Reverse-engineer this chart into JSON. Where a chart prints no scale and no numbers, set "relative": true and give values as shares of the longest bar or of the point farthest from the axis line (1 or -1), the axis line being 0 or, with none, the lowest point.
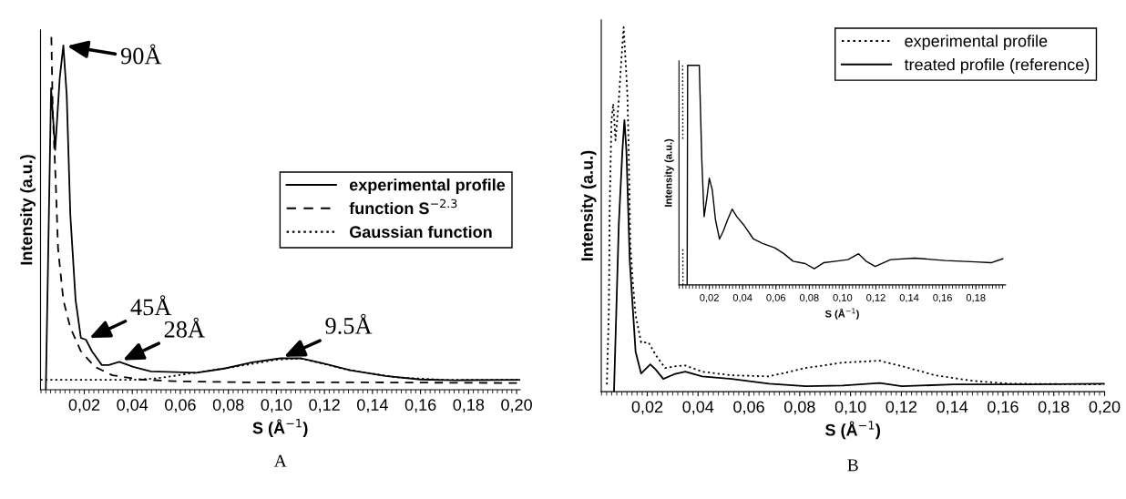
{
  "chart_data": [
    {
      "type": "line",
      "xlabel": "S (Å$^{−1}$)",
      "ylabel": "Intensity (a.u.)",
      "relative": true,
      "tick_labels": "x",
      "legend": "right",
      "grid": false,
      "xlim": [
        0.0018,
        0.2015
      ],
      "xticks": [
        {
          "value": 0.02,
          "label": "0,02"
        },
        {
          "value": 0.04,
          "label": "0,04"
        },
        {
          "value": 0.06,
          "label": "0,06"
        },
        {
          "value": 0.08,
          "label": "0,08"
        },
        {
          "value": 0.1,
          "label": "0,10"
        },
        {
          "value": 0.12,
          "label": "0,12"
        },
        {
          "value": 0.14,
          "label": "0,14"
        },
        {
          "value": 0.16,
          "label": "0,16"
        },
        {
          "value": 0.18,
          "label": "0,18"
        },
        {
          "value": 0.2,
          "label": "0,20"
        }
      ],
      "series": [
        {
          "name": "experimental profile",
          "color": "#000000",
          "line_style": "solid",
          "x": [
            0.004,
            0.0062,
            0.0079,
            0.0098,
            0.0113,
            0.0127,
            0.0142,
            0.0164,
            0.0186,
            0.0207,
            0.0232,
            0.0273,
            0.0302,
            0.0346,
            0.0404,
            0.0477,
            0.0579,
            0.0667,
            0.0783,
            0.09,
            0.1017,
            0.1104,
            0.1192,
            0.1308,
            0.1454,
            0.16,
            0.1746,
            0.2015
          ],
          "values": [
            0,
            0.855,
            0.68,
            0.884,
            0.976,
            0.835,
            0.496,
            0.254,
            0.147,
            0.142,
            0.109,
            0.07,
            0.07,
            0.079,
            0.065,
            0.052,
            0.05,
            0.048,
            0.06,
            0.078,
            0.089,
            0.089,
            0.075,
            0.055,
            0.039,
            0.029,
            0.027,
            0.028
          ]
        },
        {
          "name": "function S$^{−2.3}$",
          "color": "#000000",
          "line_style": "dashed",
          "x": [
            0.0063,
            0.0069,
            0.0081,
            0.0091,
            0.0113,
            0.0142,
            0.0186,
            0.0244,
            0.0317,
            0.0433,
            0.0579,
            0.087,
            0.1308,
            0.2015
          ],
          "values": [
            1.0,
            0.787,
            0.593,
            0.399,
            0.254,
            0.176,
            0.109,
            0.065,
            0.041,
            0.029,
            0.024,
            0.021,
            0.021,
            0.019
          ]
        },
        {
          "name": "Gaussian function",
          "color": "#000000",
          "line_style": "dotted",
          "x": [
            0.0018,
            0.04,
            0.05,
            0.06,
            0.066,
            0.08,
            0.1,
            0.11,
            0.13,
            0.15,
            0.17,
            0.2015
          ],
          "values": [
            0.028,
            0.028,
            0.032,
            0.042,
            0.048,
            0.062,
            0.085,
            0.089,
            0.056,
            0.035,
            0.028,
            0.028
          ]
        }
      ],
      "annotations": [
        {
          "text": "90Å",
          "x": 0.0113,
          "y": 0.976
        },
        {
          "text": "45Å",
          "x": 0.0207,
          "y": 0.142
        },
        {
          "text": "28Å",
          "x": 0.0346,
          "y": 0.079
        },
        {
          "text": "9.5Å",
          "x": 0.1017,
          "y": 0.089
        },
        "A"
      ]
    },
    {
      "type": "line",
      "xlabel": "S (Å$^{−1}$)",
      "ylabel": "Intensity (a.u.)",
      "relative": true,
      "tick_labels": "x",
      "legend": "top right",
      "grid": false,
      "xlim": [
        0.0019,
        0.2
      ],
      "xticks": [
        {
          "value": 0.02,
          "label": "0,02"
        },
        {
          "value": 0.04,
          "label": "0,04"
        },
        {
          "value": 0.06,
          "label": "0,06"
        },
        {
          "value": 0.08,
          "label": "0,08"
        },
        {
          "value": 0.1,
          "label": "0,10"
        },
        {
          "value": 0.12,
          "label": "0,12"
        },
        {
          "value": 0.14,
          "label": "0,14"
        },
        {
          "value": 0.16,
          "label": "0,16"
        },
        {
          "value": 0.18,
          "label": "0,18"
        },
        {
          "value": 0.2,
          "label": "0,20"
        }
      ],
      "series": [
        {
          "name": "experimental profile",
          "color": "#000000",
          "line_style": "dotted",
          "x": [
            0.0041,
            0.0049,
            0.0052,
            0.0059,
            0.0066,
            0.0075,
            0.0088,
            0.0098,
            0.0107,
            0.0116,
            0.0122,
            0.0127,
            0.0133,
            0.0142,
            0.0154,
            0.0176,
            0.0205,
            0.0234,
            0.027,
            0.0314,
            0.035,
            0.0416,
            0.0532,
            0.0679,
            0.0824,
            0.097,
            0.1115,
            0.1202,
            0.1334,
            0.1479,
            0.1625,
            0.2
          ],
          "values": [
            0.02,
            0.23,
            0.5,
            0.74,
            0.79,
            0.69,
            0.8,
            0.91,
            1.0,
            0.89,
            0.81,
            0.66,
            0.41,
            0.31,
            0.21,
            0.135,
            0.135,
            0.1,
            0.065,
            0.07,
            0.072,
            0.055,
            0.045,
            0.042,
            0.065,
            0.08,
            0.085,
            0.07,
            0.045,
            0.03,
            0.022,
            0.02
          ]
        },
        {
          "name": "treated profile (reference)",
          "color": "#000000",
          "line_style": "solid",
          "x": [
            0.0069,
            0.0088,
            0.0102,
            0.011,
            0.0118,
            0.0131,
            0.0154,
            0.0176,
            0.0212,
            0.0234,
            0.0263,
            0.0306,
            0.035,
            0.0416,
            0.0532,
            0.0679,
            0.0824,
            0.097,
            0.1115,
            0.1202,
            0.1406,
            0.1697,
            0.2
          ],
          "values": [
            0,
            0.46,
            0.66,
            0.745,
            0.66,
            0.36,
            0.11,
            0.05,
            0.075,
            0.06,
            0.035,
            0.048,
            0.055,
            0.042,
            0.035,
            0.022,
            0.015,
            0.017,
            0.024,
            0.015,
            0.02,
            0.02,
            0.022
          ]
        }
      ],
      "annotations": [
        "B"
      ]
    },
    {
      "type": "line",
      "xlabel": "S (Å$^{−1}$)",
      "ylabel": "Intensity (a.u.)",
      "relative": true,
      "tick_labels": "x",
      "grid": false,
      "xlim": [
        0.0018,
        0.1978
      ],
      "xticks": [
        {
          "value": 0.02,
          "label": "0,02"
        },
        {
          "value": 0.04,
          "label": "0,04"
        },
        {
          "value": 0.06,
          "label": "0,06"
        },
        {
          "value": 0.08,
          "label": "0,08"
        },
        {
          "value": 0.1,
          "label": "0,10"
        },
        {
          "value": 0.12,
          "label": "0,12"
        },
        {
          "value": 0.14,
          "label": "0,14"
        },
        {
          "value": 0.16,
          "label": "0,16"
        },
        {
          "value": 0.18,
          "label": "0,18"
        }
      ],
      "series": [
        {
          "color": "#000000",
          "line_style": "dotted",
          "x": [
            0.004,
            0.0041
          ],
          "values": [
            1.0,
            0.662
          ]
        },
        {
          "color": "#000000",
          "line_style": "dotted",
          "x": [
            0.0041,
            0.0042
          ],
          "values": [
            0.162,
            0.0
          ]
        },
        {
          "color": "#000000",
          "line_style": "solid",
          "x": [
            0.0067,
            0.007,
            0.014,
            0.0155,
            0.0169,
            0.0187,
            0.02,
            0.0218,
            0.0237,
            0.0261,
            0.0283,
            0.031,
            0.0337,
            0.0365,
            0.041,
            0.0465,
            0.052,
            0.0593,
            0.0648,
            0.0703,
            0.0776,
            0.083,
            0.0886,
            0.0959,
            0.1032,
            0.1096,
            0.1141,
            0.1196,
            0.1288,
            0.1434,
            0.1617,
            0.18,
            0.1891,
            0.1961
          ],
          "values": [
            0,
            1.0,
            1.0,
            0.568,
            0.311,
            0.405,
            0.486,
            0.432,
            0.297,
            0.209,
            0.243,
            0.297,
            0.345,
            0.311,
            0.27,
            0.209,
            0.189,
            0.169,
            0.142,
            0.108,
            0.097,
            0.074,
            0.101,
            0.108,
            0.115,
            0.142,
            0.108,
            0.084,
            0.115,
            0.122,
            0.111,
            0.105,
            0.101,
            0.119
          ]
        }
      ]
    }
  ]
}
